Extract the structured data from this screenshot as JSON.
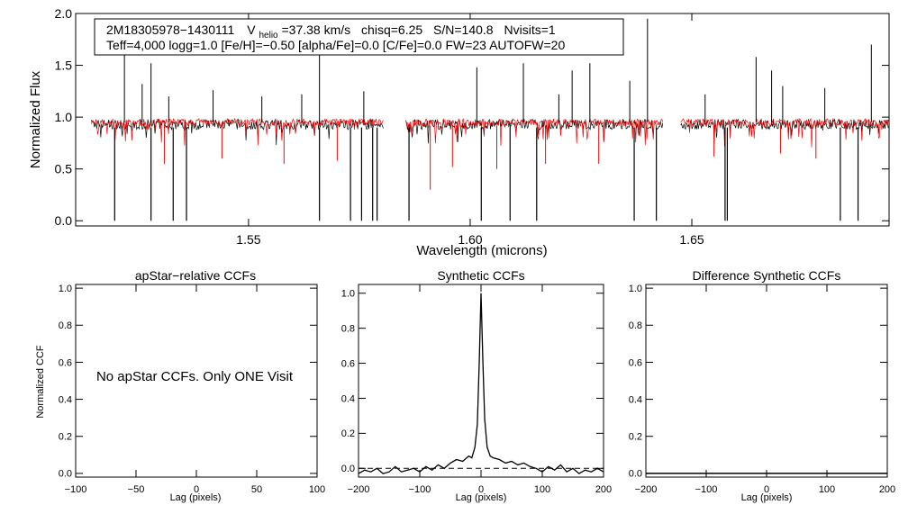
{
  "chart_data": [
    {
      "type": "line",
      "panel": "spectrum",
      "annotation_line1": {
        "star_id": "2M18305978−1430111",
        "v_prefix": "V",
        "v_subscript": "helio",
        "v_suffix": "=37.38 km/s",
        "chisq": "chisq=6.25",
        "sn": "S/N=140.8",
        "nvisits": "Nvisits=1"
      },
      "annotation_line2": "Teff=4,000 logg=1.0 [Fe/H]=−0.50 [alpha/Fe]=0.0 [C/Fe]=0.0 FW=23 AUTOFW=20",
      "xlabel": "Wavelength (microns)",
      "ylabel": "Normalized Flux",
      "xlim": [
        1.511,
        1.6945
      ],
      "ylim": [
        -0.05,
        2.0
      ],
      "xticks": [
        {
          "value": 1.55,
          "label": "1.55"
        },
        {
          "value": 1.6,
          "label": "1.60"
        },
        {
          "value": 1.65,
          "label": "1.65"
        }
      ],
      "yticks": [
        {
          "value": 0.0,
          "label": "0.0"
        },
        {
          "value": 0.5,
          "label": "0.5"
        },
        {
          "value": 1.0,
          "label": "1.0"
        },
        {
          "value": 1.5,
          "label": "1.5"
        },
        {
          "value": 2.0,
          "label": "2.0"
        }
      ],
      "chip_ranges": [
        [
          1.5145,
          1.5805
        ],
        [
          1.5855,
          1.6435
        ],
        [
          1.6475,
          1.6945
        ]
      ],
      "observed_color": "#000000",
      "model_color": "#ff0000",
      "emission_spikes": [
        {
          "x": 1.522,
          "y": 1.6
        },
        {
          "x": 1.526,
          "y": 1.32
        },
        {
          "x": 1.528,
          "y": 1.52
        },
        {
          "x": 1.532,
          "y": 1.2
        },
        {
          "x": 1.542,
          "y": 1.26
        },
        {
          "x": 1.553,
          "y": 1.2
        },
        {
          "x": 1.566,
          "y": 1.8
        },
        {
          "x": 1.562,
          "y": 1.22
        },
        {
          "x": 1.576,
          "y": 1.25
        },
        {
          "x": 1.6015,
          "y": 1.48
        },
        {
          "x": 1.612,
          "y": 1.52
        },
        {
          "x": 1.62,
          "y": 1.22
        },
        {
          "x": 1.623,
          "y": 1.45
        },
        {
          "x": 1.627,
          "y": 1.52
        },
        {
          "x": 1.636,
          "y": 1.35
        },
        {
          "x": 1.64,
          "y": 1.95
        },
        {
          "x": 1.653,
          "y": 1.22
        },
        {
          "x": 1.6645,
          "y": 1.58
        },
        {
          "x": 1.668,
          "y": 1.45
        },
        {
          "x": 1.6705,
          "y": 1.3
        },
        {
          "x": 1.68,
          "y": 1.28
        },
        {
          "x": 1.6905,
          "y": 1.7
        }
      ],
      "absorption_drops": [
        {
          "x": 1.5198,
          "y": 0.0
        },
        {
          "x": 1.528,
          "y": 0.0
        },
        {
          "x": 1.533,
          "y": 0.0
        },
        {
          "x": 1.536,
          "y": 0.0
        },
        {
          "x": 1.566,
          "y": 0.0
        },
        {
          "x": 1.573,
          "y": 0.0
        },
        {
          "x": 1.5755,
          "y": 0.0
        },
        {
          "x": 1.578,
          "y": 0.0
        },
        {
          "x": 1.579,
          "y": 0.0
        },
        {
          "x": 1.5862,
          "y": 0.0
        },
        {
          "x": 1.6025,
          "y": 0.0
        },
        {
          "x": 1.609,
          "y": 0.0
        },
        {
          "x": 1.615,
          "y": 0.0
        },
        {
          "x": 1.637,
          "y": 0.0
        },
        {
          "x": 1.642,
          "y": 0.0
        },
        {
          "x": 1.6575,
          "y": 0.0
        },
        {
          "x": 1.658,
          "y": 0.0
        },
        {
          "x": 1.6835,
          "y": 0.0
        },
        {
          "x": 1.6875,
          "y": 0.0
        }
      ],
      "model_dips": [
        {
          "x": 1.531,
          "y": 0.55
        },
        {
          "x": 1.544,
          "y": 0.6
        },
        {
          "x": 1.558,
          "y": 0.55
        },
        {
          "x": 1.57,
          "y": 0.58
        },
        {
          "x": 1.591,
          "y": 0.3
        },
        {
          "x": 1.596,
          "y": 0.52
        },
        {
          "x": 1.606,
          "y": 0.5
        },
        {
          "x": 1.617,
          "y": 0.55
        },
        {
          "x": 1.629,
          "y": 0.55
        },
        {
          "x": 1.655,
          "y": 0.62
        },
        {
          "x": 1.67,
          "y": 0.65
        },
        {
          "x": 1.678,
          "y": 0.6
        }
      ]
    },
    {
      "type": "line",
      "panel": "apstar-ccf",
      "title": "apStar−relative CCFs",
      "xlabel": "Lag (pixels)",
      "ylabel": "Normalized CCF",
      "message": "No apStar CCFs.  Only ONE Visit",
      "xlim": [
        -100,
        100
      ],
      "ylim": [
        -0.02,
        1.02
      ],
      "xticks": [
        {
          "value": -100,
          "label": "−100"
        },
        {
          "value": -50,
          "label": "−50"
        },
        {
          "value": 0,
          "label": "0"
        },
        {
          "value": 50,
          "label": "50"
        },
        {
          "value": 100,
          "label": "100"
        }
      ],
      "yticks": [
        {
          "value": 0.0,
          "label": "0.0"
        },
        {
          "value": 0.2,
          "label": "0.2"
        },
        {
          "value": 0.4,
          "label": "0.4"
        },
        {
          "value": 0.6,
          "label": "0.6"
        },
        {
          "value": 0.8,
          "label": "0.8"
        },
        {
          "value": 1.0,
          "label": "1.0"
        }
      ]
    },
    {
      "type": "line",
      "panel": "synthetic-ccf",
      "title": "Synthetic CCFs",
      "xlabel": "Lag (pixels)",
      "xlim": [
        -200,
        200
      ],
      "ylim": [
        -0.05,
        1.05
      ],
      "baseline": 0.0,
      "xticks": [
        {
          "value": -200,
          "label": "−200"
        },
        {
          "value": -100,
          "label": "−100"
        },
        {
          "value": 0,
          "label": "0"
        },
        {
          "value": 100,
          "label": "100"
        },
        {
          "value": 200,
          "label": "200"
        }
      ],
      "yticks": [
        {
          "value": 0.0,
          "label": "0.0"
        },
        {
          "value": 0.2,
          "label": "0.2"
        },
        {
          "value": 0.4,
          "label": "0.4"
        },
        {
          "value": 0.6,
          "label": "0.6"
        },
        {
          "value": 0.8,
          "label": "0.8"
        },
        {
          "value": 1.0,
          "label": "1.0"
        }
      ],
      "x": [
        -200,
        -190,
        -180,
        -170,
        -160,
        -150,
        -140,
        -130,
        -120,
        -110,
        -100,
        -90,
        -80,
        -70,
        -60,
        -50,
        -40,
        -30,
        -20,
        -15,
        -10,
        -6,
        -3,
        0,
        3,
        6,
        10,
        15,
        20,
        30,
        40,
        50,
        60,
        70,
        80,
        90,
        100,
        110,
        120,
        130,
        140,
        150,
        160,
        170,
        180,
        190,
        200
      ],
      "y": [
        -0.03,
        -0.01,
        -0.02,
        0.0,
        -0.03,
        -0.02,
        0.01,
        -0.02,
        -0.01,
        0.0,
        -0.02,
        0.01,
        -0.01,
        0.02,
        0.0,
        0.03,
        0.05,
        0.04,
        0.07,
        0.06,
        0.12,
        0.25,
        0.6,
        1.0,
        0.62,
        0.28,
        0.12,
        0.07,
        0.06,
        0.05,
        0.03,
        0.04,
        0.02,
        0.03,
        0.01,
        0.0,
        -0.02,
        0.01,
        -0.01,
        0.02,
        -0.02,
        0.0,
        -0.03,
        -0.01,
        -0.02,
        0.0,
        -0.02
      ]
    },
    {
      "type": "line",
      "panel": "difference-ccf",
      "title": "Difference Synthetic CCFs",
      "xlabel": "Lag (pixels)",
      "xlim": [
        -200,
        200
      ],
      "ylim": [
        -0.02,
        1.02
      ],
      "baseline": 0.0,
      "xticks": [
        {
          "value": -200,
          "label": "−200"
        },
        {
          "value": -100,
          "label": "−100"
        },
        {
          "value": 0,
          "label": "0"
        },
        {
          "value": 100,
          "label": "100"
        },
        {
          "value": 200,
          "label": "200"
        }
      ],
      "yticks": [
        {
          "value": 0.0,
          "label": "0.0"
        },
        {
          "value": 0.2,
          "label": "0.2"
        },
        {
          "value": 0.4,
          "label": "0.4"
        },
        {
          "value": 0.6,
          "label": "0.6"
        },
        {
          "value": 0.8,
          "label": "0.8"
        },
        {
          "value": 1.0,
          "label": "1.0"
        }
      ]
    }
  ]
}
